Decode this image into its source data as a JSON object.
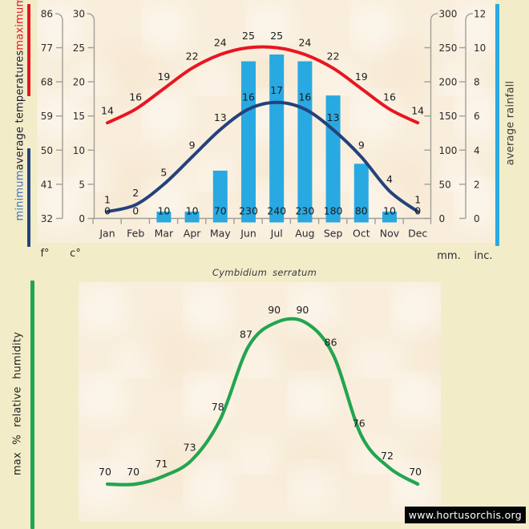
{
  "page": {
    "species_title": "Cymbidium serratum",
    "watermark": "www.hortusorchis.org"
  },
  "legends": {
    "minimum": "minimum",
    "average_temperatures": "average temperatures",
    "maximum": "maximum",
    "average_rainfall": "average rainfall",
    "max_humidity": "max % relative humidity"
  },
  "colors": {
    "max_temp": "#e81622",
    "min_temp": "#24427b",
    "rain": "#29a9e1",
    "humidity": "#22a551",
    "min_legend_text": "#4472c4",
    "avg_legend_text": "#1b1b34",
    "axis_line": "#a29f96",
    "tick_text": "#2b2b2b",
    "month_text": "#2a2a33",
    "value_text": "#1d1d1d"
  },
  "chart_data": [
    {
      "type": "bar",
      "title": "climate diagram (temperatures and rainfall)",
      "categories": [
        "Jan",
        "Feb",
        "Mar",
        "Apr",
        "May",
        "Jun",
        "Jul",
        "Aug",
        "Sep",
        "Oct",
        "Nov",
        "Dec"
      ],
      "series": [
        {
          "name": "maximum average temperature",
          "unit": "c°",
          "type": "line",
          "values": [
            14,
            16,
            19,
            22,
            24,
            25,
            25,
            24,
            22,
            19,
            16,
            14
          ]
        },
        {
          "name": "minimum average temperature",
          "unit": "c°",
          "type": "line",
          "values": [
            1,
            2,
            5,
            9,
            13,
            16,
            17,
            16,
            13,
            9,
            4,
            1
          ]
        },
        {
          "name": "average rainfall",
          "unit": "mm.",
          "type": "bar",
          "values": [
            0,
            0,
            10,
            10,
            70,
            230,
            240,
            230,
            180,
            80,
            10,
            0
          ]
        }
      ],
      "axes": {
        "f": {
          "unit": "f°",
          "ticks": [
            32,
            41,
            50,
            59,
            68,
            77,
            86
          ]
        },
        "c": {
          "unit": "c°",
          "ticks": [
            0,
            5,
            10,
            15,
            20,
            25,
            30
          ]
        },
        "mm": {
          "unit": "mm.",
          "ticks": [
            0,
            50,
            100,
            150,
            200,
            250,
            300
          ]
        },
        "inc": {
          "unit": "inc.",
          "ticks": [
            0,
            2,
            4,
            6,
            8,
            10,
            12
          ]
        }
      },
      "ylim_c": [
        0,
        30
      ],
      "ylim_mm": [
        0,
        300
      ],
      "grid": false,
      "legend_position": "rotated side labels"
    },
    {
      "type": "line",
      "title": "max % relative humidity",
      "categories": [
        "Jan",
        "Feb",
        "Mar",
        "Apr",
        "May",
        "Jun",
        "Jul",
        "Aug",
        "Sep",
        "Oct",
        "Nov",
        "Dec"
      ],
      "values": [
        70,
        70,
        71,
        73,
        78,
        87,
        90,
        90,
        86,
        76,
        72,
        70
      ],
      "ylim": [
        70,
        90
      ],
      "grid": false
    }
  ]
}
